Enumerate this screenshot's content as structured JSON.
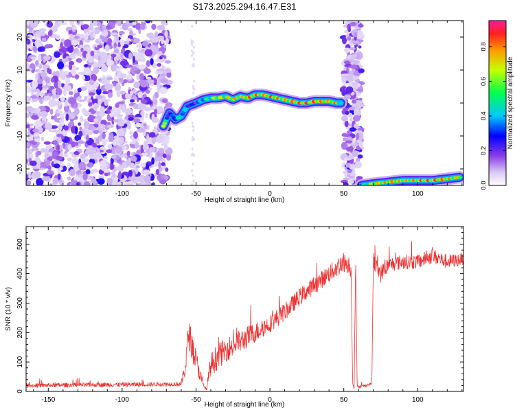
{
  "page_title": "S173.2025.294.16.47.E31",
  "colors": {
    "snr_line": "#ee3030",
    "frame": "#000000",
    "background": "#ffffff",
    "colormap": [
      "#ffffff",
      "#c8a8f0",
      "#9650e6",
      "#6e14e6",
      "#0000ff",
      "#00c8ff",
      "#00ff64",
      "#c8ff00",
      "#ffa000",
      "#ff2020",
      "#ff1493"
    ]
  },
  "chart_data": [
    {
      "type": "heatmap",
      "name": "spectrogram",
      "title": "S173.2025.294.16.47.E31",
      "xlabel": "Height of straight line (km)",
      "ylabel": "Frequency (Hz)",
      "xlim": [
        -165,
        131
      ],
      "ylim": [
        -25,
        25
      ],
      "xticks": [
        -150,
        -100,
        -50,
        0,
        50,
        100
      ],
      "xtick_labels": [
        "-150",
        "-100",
        "-50",
        "0",
        "50",
        "100"
      ],
      "yticks": [
        -20,
        -10,
        0,
        10,
        20
      ],
      "ytick_labels": [
        "-20",
        "-10",
        "0",
        "10",
        "20"
      ],
      "noise_regions": [
        {
          "x_range": [
            -165,
            -68
          ],
          "y_range": [
            -25,
            25
          ],
          "density": "high"
        },
        {
          "x_range": [
            50,
            62
          ],
          "y_range": [
            -25,
            25
          ],
          "density": "medium"
        }
      ],
      "signal_track": {
        "x": [
          -72,
          -68,
          -64,
          -60,
          -56,
          -50,
          -45,
          -40,
          -35,
          -30,
          -25,
          -20,
          -15,
          -10,
          -5,
          0,
          5,
          10,
          15,
          20,
          25,
          30,
          35,
          40,
          45,
          48
        ],
        "y": [
          -7,
          -3,
          -5,
          -4,
          -1,
          0,
          1,
          1.5,
          1.5,
          2,
          1,
          2,
          1.5,
          2.5,
          2.5,
          2,
          1.5,
          1,
          0.5,
          0,
          0,
          0.5,
          0.5,
          0.5,
          0,
          0
        ],
        "amplitude": [
          0.75,
          0.3,
          0.45,
          0.6,
          0.4,
          0.3,
          0.55,
          0.65,
          0.85,
          0.7,
          0.9,
          0.8,
          0.9,
          0.95,
          0.85,
          0.95,
          0.9,
          0.85,
          0.9,
          0.95,
          1.0,
          0.95,
          0.9,
          0.85,
          0.9,
          0.6
        ]
      },
      "second_track": {
        "x": [
          62,
          70,
          80,
          90,
          100,
          110,
          120,
          129
        ],
        "y": [
          -25,
          -24.5,
          -24,
          -23.5,
          -23.5,
          -23.5,
          -23,
          -22.5
        ],
        "amplitude": [
          0.5,
          0.8,
          0.9,
          0.85,
          0.9,
          0.95,
          0.9,
          0.8
        ]
      },
      "colorbar": {
        "label": "Normalized spectral amplitude",
        "range": [
          0,
          0.95
        ],
        "ticks": [
          0,
          0.2,
          0.4,
          0.6,
          0.8
        ],
        "tick_labels": [
          "0.0",
          "0.2",
          "0.4",
          "0.6",
          "0.8"
        ]
      }
    },
    {
      "type": "line",
      "name": "snr",
      "xlabel": "Height of straight line (km)",
      "ylabel": "SNR (10 * v/v)",
      "xlim": [
        -165,
        131
      ],
      "ylim": [
        0,
        560
      ],
      "xticks": [
        -150,
        -100,
        -50,
        0,
        50,
        100
      ],
      "xtick_labels": [
        "-150",
        "-100",
        "-50",
        "0",
        "50",
        "100"
      ],
      "yticks": [
        0,
        100,
        200,
        300,
        400,
        500
      ],
      "ytick_labels": [
        "0",
        "100",
        "200",
        "300",
        "400",
        "500"
      ],
      "series": [
        {
          "name": "SNR",
          "x": [
            -165,
            -60,
            -57,
            -55,
            -52,
            -48,
            -45,
            -43,
            -40,
            -35,
            -30,
            -20,
            -10,
            0,
            10,
            20,
            30,
            40,
            45,
            50,
            54,
            55,
            56,
            57,
            58,
            59,
            60,
            65,
            68,
            69,
            70,
            72,
            75,
            80,
            90,
            100,
            110,
            120,
            131
          ],
          "base": [
            20,
            25,
            90,
            200,
            140,
            70,
            20,
            5,
            90,
            120,
            140,
            170,
            200,
            230,
            270,
            320,
            360,
            400,
            420,
            440,
            430,
            400,
            30,
            10,
            440,
            30,
            15,
            20,
            25,
            30,
            450,
            420,
            400,
            430,
            440,
            440,
            460,
            440,
            450
          ],
          "amplitude": [
            15,
            15,
            80,
            100,
            100,
            60,
            20,
            10,
            80,
            90,
            80,
            80,
            70,
            60,
            60,
            60,
            60,
            60,
            70,
            70,
            60,
            50,
            20,
            5,
            50,
            20,
            10,
            10,
            10,
            10,
            60,
            60,
            60,
            50,
            50,
            50,
            50,
            50,
            40
          ]
        }
      ]
    }
  ]
}
